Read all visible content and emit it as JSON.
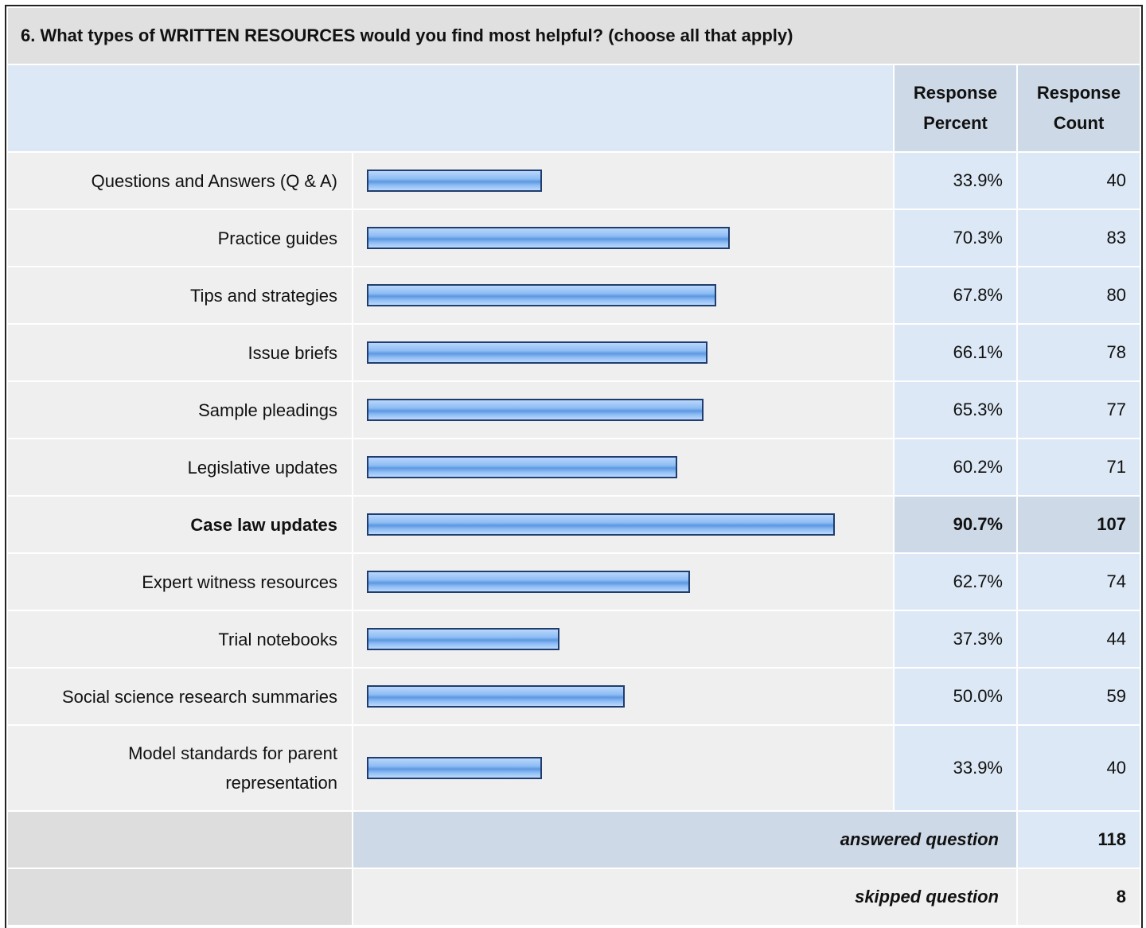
{
  "chart_data": {
    "type": "bar",
    "title": "6. What types of WRITTEN RESOURCES would you find most helpful? (choose all that apply)",
    "categories": [
      "Questions and Answers (Q & A)",
      "Practice guides",
      "Tips and strategies",
      "Issue briefs",
      "Sample pleadings",
      "Legislative updates",
      "Case law updates",
      "Expert witness resources",
      "Trial notebooks",
      "Social science research summaries",
      "Model standards for parent representation"
    ],
    "series": [
      {
        "name": "Response Percent",
        "color": "#7fb2ee",
        "values": [
          33.9,
          70.3,
          67.8,
          66.1,
          65.3,
          60.2,
          90.7,
          62.7,
          37.3,
          50.0,
          33.9
        ],
        "value_labels": [
          "33.9%",
          "70.3%",
          "67.8%",
          "66.1%",
          "65.3%",
          "60.2%",
          "90.7%",
          "62.7%",
          "37.3%",
          "50.0%",
          "33.9%"
        ]
      },
      {
        "name": "Response Count",
        "values": [
          40,
          83,
          80,
          78,
          77,
          71,
          107,
          74,
          44,
          59,
          40
        ]
      }
    ],
    "answered": {
      "label": "answered question",
      "value": 118
    },
    "skipped": {
      "label": "skipped question",
      "value": 8
    }
  }
}
